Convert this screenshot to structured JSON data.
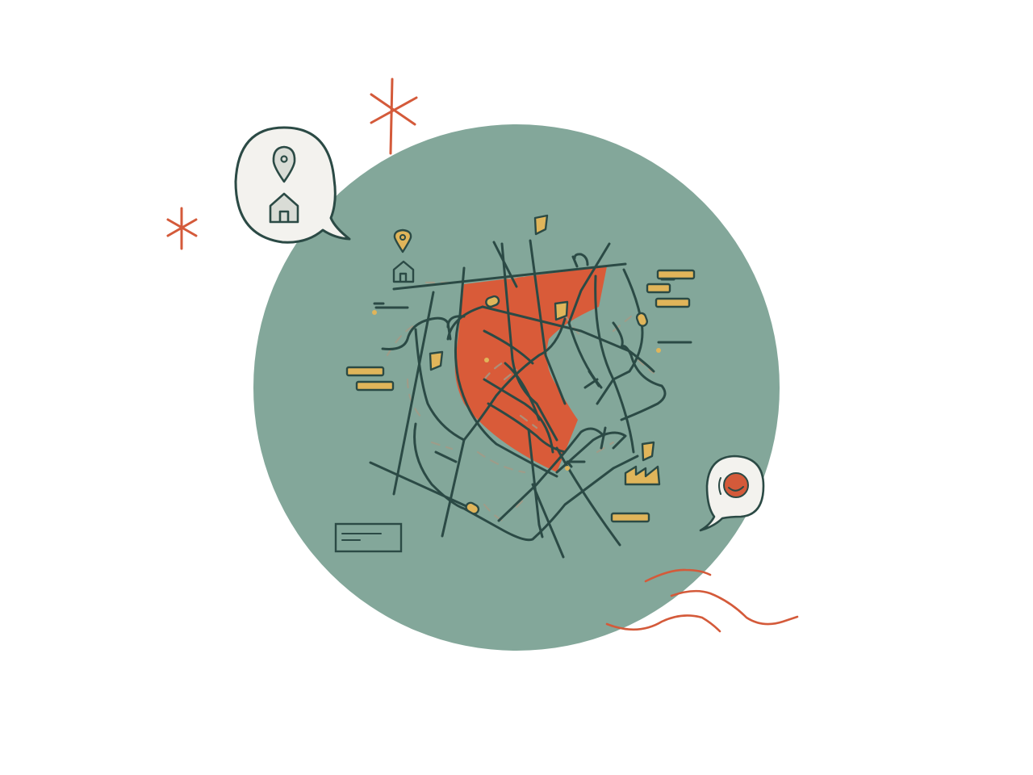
{
  "colors": {
    "background": "#ffffff",
    "disc": "#83a79a",
    "district": "#d95b39",
    "ink": "#2b4a45",
    "ochre": "#e0b55a",
    "bubble": "#f3f2ee",
    "accent": "#d45a3a",
    "street_dash": "#a39a86"
  },
  "icons": {
    "location_bubble": [
      "map-pin-icon",
      "house-icon"
    ],
    "map_marker": [
      "map-pin-icon",
      "house-icon"
    ],
    "map_legend": "legend-card-icon",
    "factory": "factory-icon",
    "smiley_bubble": "smiley-face-icon",
    "sparkles": [
      "asterisk-sparkle-icon",
      "asterisk-sparkle-icon"
    ],
    "wind": "wavy-lines-icon"
  }
}
